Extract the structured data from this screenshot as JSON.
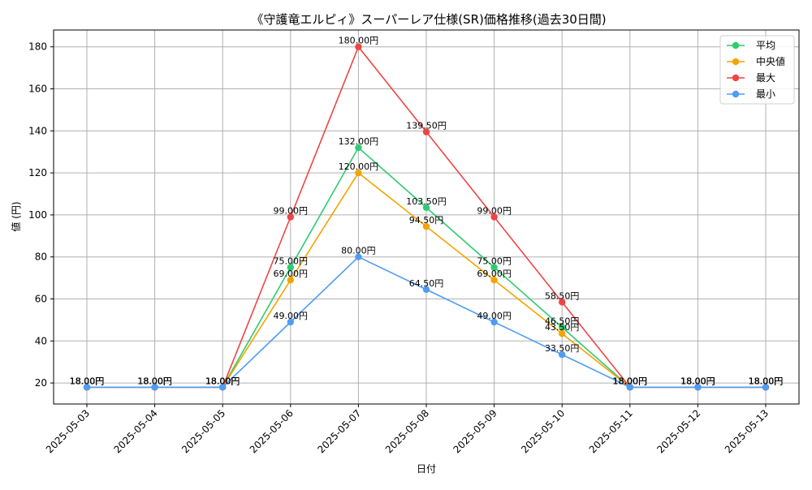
{
  "chart_data": {
    "type": "line",
    "title": "《守護竜エルピィ》スーパーレア仕様(SR)価格推移(過去30日間)",
    "xlabel": "日付",
    "ylabel": "値 (円)",
    "ylim": [
      10,
      188
    ],
    "yticks": [
      20,
      40,
      60,
      80,
      100,
      120,
      140,
      160,
      180
    ],
    "grid": true,
    "legend_position": "top-right",
    "categories": [
      "2025-05-03",
      "2025-05-04",
      "2025-05-05",
      "2025-05-06",
      "2025-05-07",
      "2025-05-08",
      "2025-05-09",
      "2025-05-10",
      "2025-05-11",
      "2025-05-12",
      "2025-05-13"
    ],
    "series": [
      {
        "name": "平均",
        "color": "#2ecc71",
        "values": [
          18,
          18,
          18,
          75,
          132,
          103.5,
          75,
          46.5,
          18,
          18,
          18
        ],
        "labels": [
          "18.00円",
          "18.00円",
          "18.00円",
          "75.00円",
          "132.00円",
          "103.50円",
          "75.00円",
          "46.50円",
          "18.00円",
          "18.00円",
          "18.00円"
        ]
      },
      {
        "name": "中央値",
        "color": "#f5a300",
        "values": [
          18,
          18,
          18,
          69,
          120,
          94.5,
          69,
          43.5,
          18,
          18,
          18
        ],
        "labels": [
          "18.00円",
          "18.00円",
          "18.00円",
          "69.00円",
          "120.00円",
          "94.50円",
          "69.00円",
          "43.50円",
          "18.00円",
          "18.00円",
          "18.00円"
        ]
      },
      {
        "name": "最大",
        "color": "#ef4444",
        "values": [
          18,
          18,
          18,
          99,
          180,
          139.5,
          99,
          58.5,
          18,
          18,
          18
        ],
        "labels": [
          "18.00円",
          "18.00円",
          "18.00円",
          "99.00円",
          "180.00円",
          "139.50円",
          "99.00円",
          "58.50円",
          "18.00円",
          "18.00円",
          "18.00円"
        ]
      },
      {
        "name": "最小",
        "color": "#4f9cf5",
        "values": [
          18,
          18,
          18,
          49,
          80,
          64.5,
          49,
          33.5,
          18,
          18,
          18
        ],
        "labels": [
          "18.00円",
          "18.00円",
          "18.00円",
          "49.00円",
          "80.00円",
          "64.50円",
          "49.00円",
          "33.50円",
          "18.00円",
          "18.00円",
          "18.00円"
        ]
      }
    ]
  }
}
